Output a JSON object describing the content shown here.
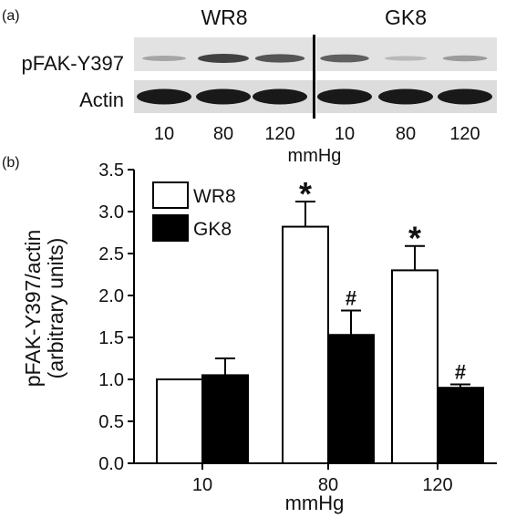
{
  "panel_a": {
    "label": "(a)",
    "group_labels": [
      "WR8",
      "GK8"
    ],
    "row_labels": [
      "pFAK-Y397",
      "Actin"
    ],
    "lane_labels": [
      "10",
      "80",
      "120",
      "10",
      "80",
      "120"
    ],
    "xlabel": "mmHg",
    "band_levels": {
      "pFAK-Y397": [
        0.25,
        0.75,
        0.65,
        0.6,
        0.15,
        0.3
      ],
      "Actin": [
        0.95,
        0.95,
        0.95,
        0.95,
        0.95,
        0.95
      ]
    }
  },
  "chart_data": {
    "type": "bar",
    "panel_label": "(b)",
    "categories": [
      "10",
      "80",
      "120"
    ],
    "series": [
      {
        "name": "WR8",
        "values": [
          1.0,
          2.82,
          2.3
        ],
        "errors": [
          0.0,
          0.3,
          0.29
        ],
        "color": "#ffffff"
      },
      {
        "name": "GK8",
        "values": [
          1.05,
          1.53,
          0.9
        ],
        "errors": [
          0.2,
          0.29,
          0.04
        ],
        "color": "#000000"
      }
    ],
    "annotations": [
      {
        "series": "WR8",
        "category": "80",
        "text": "*"
      },
      {
        "series": "GK8",
        "category": "80",
        "text": "#"
      },
      {
        "series": "WR8",
        "category": "120",
        "text": "*"
      },
      {
        "series": "GK8",
        "category": "120",
        "text": "#"
      }
    ],
    "ylabel_lines": [
      "pFAK-Y397/actin",
      "(arbitrary units)"
    ],
    "xlabel": "mmHg",
    "ylim": [
      0,
      3.5
    ],
    "yticks": [
      "0.0",
      "0.5",
      "1.0",
      "1.5",
      "2.0",
      "2.5",
      "3.0",
      "3.5"
    ],
    "legend_position": "top-left",
    "grid": false
  }
}
